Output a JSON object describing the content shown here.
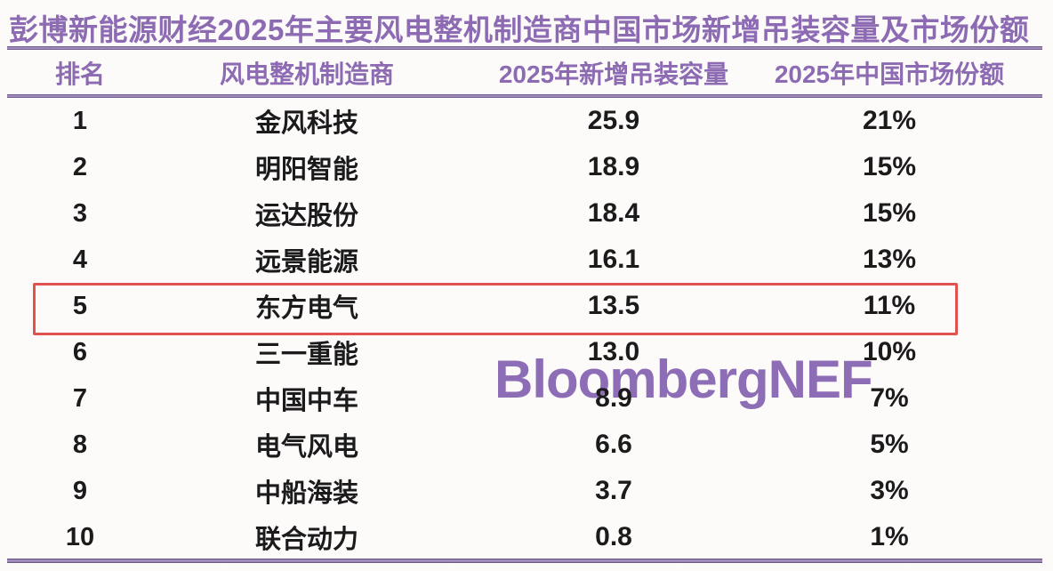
{
  "title": "彭博新能源财经2025年主要风电整机制造商中国市场新增吊装容量及市场份额",
  "watermark": "BloombergNEF",
  "colors": {
    "title_purple": "#8c6bb3",
    "header_purple": "#8c6bb3",
    "divider_dark_purple": "#564470",
    "divider_light_purple": "#a893c4",
    "watermark_purple": "#8d6db6",
    "highlight_box_red": "#e2534f",
    "body_text": "#1b1b1b",
    "background": "#fdfafa"
  },
  "table": {
    "headers": {
      "rank": "排名",
      "manufacturer": "风电整机制造商",
      "capacity": "2025年新增吊装容量",
      "share": "2025年中国市场份额"
    },
    "highlighted_rank": "5",
    "rows": [
      {
        "rank": "1",
        "manufacturer": "金风科技",
        "capacity": "25.9",
        "share": "21%",
        "highlighted": false
      },
      {
        "rank": "2",
        "manufacturer": "明阳智能",
        "capacity": "18.9",
        "share": "15%",
        "highlighted": false
      },
      {
        "rank": "3",
        "manufacturer": "运达股份",
        "capacity": "18.4",
        "share": "15%",
        "highlighted": false
      },
      {
        "rank": "4",
        "manufacturer": "远景能源",
        "capacity": "16.1",
        "share": "13%",
        "highlighted": false
      },
      {
        "rank": "5",
        "manufacturer": "东方电气",
        "capacity": "13.5",
        "share": "11%",
        "highlighted": true
      },
      {
        "rank": "6",
        "manufacturer": "三一重能",
        "capacity": "13.0",
        "share": "10%",
        "highlighted": false
      },
      {
        "rank": "7",
        "manufacturer": "中国中车",
        "capacity": "8.9",
        "share": "7%",
        "highlighted": false
      },
      {
        "rank": "8",
        "manufacturer": "电气风电",
        "capacity": "6.6",
        "share": "5%",
        "highlighted": false
      },
      {
        "rank": "9",
        "manufacturer": "中船海装",
        "capacity": "3.7",
        "share": "3%",
        "highlighted": false
      },
      {
        "rank": "10",
        "manufacturer": "联合动力",
        "capacity": "0.8",
        "share": "1%",
        "highlighted": false
      }
    ]
  },
  "chart_data": {
    "type": "table",
    "title": "彭博新能源财经2025年主要风电整机制造商中国市场新增吊装容量及市场份额",
    "columns": [
      "排名",
      "风电整机制造商",
      "2025年新增吊装容量",
      "2025年中国市场份额"
    ],
    "rows": [
      [
        1,
        "金风科技",
        25.9,
        "21%"
      ],
      [
        2,
        "明阳智能",
        18.9,
        "15%"
      ],
      [
        3,
        "运达股份",
        18.4,
        "15%"
      ],
      [
        4,
        "远景能源",
        16.1,
        "13%"
      ],
      [
        5,
        "东方电气",
        13.5,
        "11%"
      ],
      [
        6,
        "三一重能",
        13.0,
        "10%"
      ],
      [
        7,
        "中国中车",
        8.9,
        "7%"
      ],
      [
        8,
        "电气风电",
        6.6,
        "5%"
      ],
      [
        9,
        "中船海装",
        3.7,
        "3%"
      ],
      [
        10,
        "联合动力",
        0.8,
        "1%"
      ]
    ],
    "highlighted_row_rank": 5,
    "watermark": "BloombergNEF",
    "legend_position": "none",
    "grid": false
  }
}
